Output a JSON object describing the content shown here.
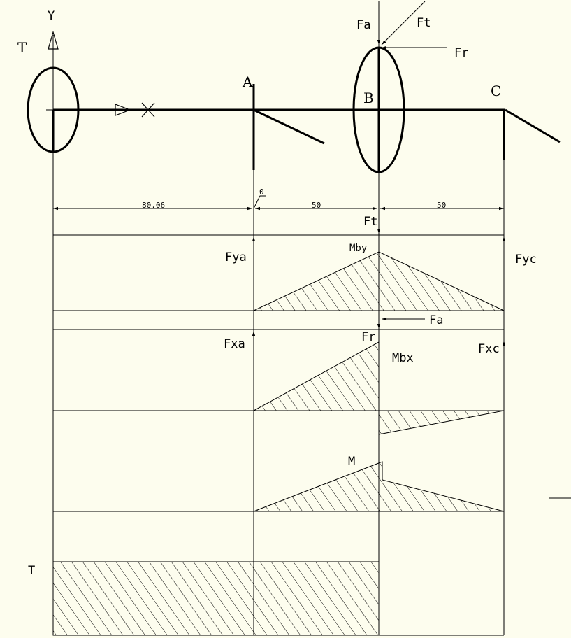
{
  "colors": {
    "background": "#fdfdee",
    "line": "#000000"
  },
  "labels": {
    "axis_y": "Y",
    "torque_top": "T",
    "point_a": "A",
    "point_b": "B",
    "point_c": "C",
    "fa_top": "Fa",
    "ft_top": "Ft",
    "fr_top": "Fr",
    "ft_mid": "Ft",
    "fya": "Fya",
    "mby": "Mby",
    "fyc": "Fyc",
    "fa_mid": "Fa",
    "fxa": "Fxa",
    "fr_mid": "Fr",
    "mbx": "Mbx",
    "fxc": "Fxc",
    "m": "M",
    "torque_bottom": "T"
  },
  "dimensions": {
    "zero": "0",
    "left_span": "80,06",
    "mid_span": "50",
    "right_span": "50"
  }
}
